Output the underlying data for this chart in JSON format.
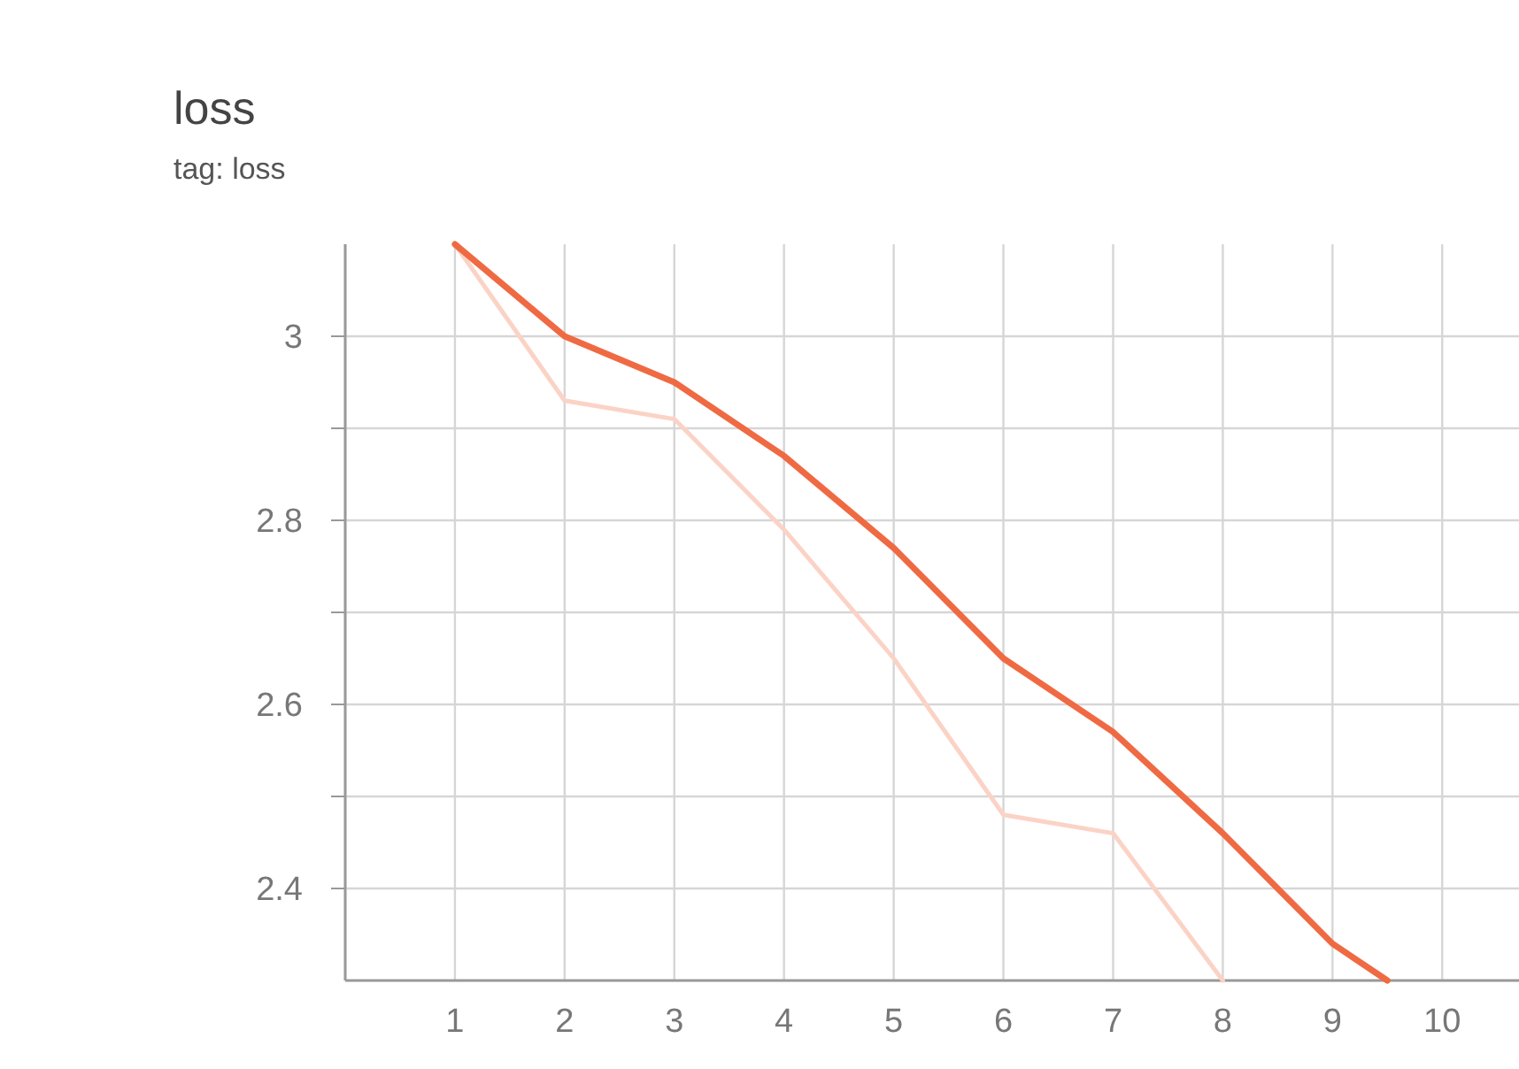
{
  "chart_data": {
    "type": "line",
    "title": "loss",
    "subtitle": "tag: loss",
    "xlim": [
      0,
      10.7
    ],
    "xticks": [
      {
        "value": 0,
        "label": null
      },
      1,
      2,
      3,
      4,
      5,
      6,
      7,
      8,
      9,
      10
    ],
    "ylim": [
      2.3,
      3.1
    ],
    "yticks": [
      {
        "value": 2.4,
        "label": "2.4"
      },
      {
        "value": 2.5,
        "label": null
      },
      {
        "value": 2.6,
        "label": "2.6"
      },
      {
        "value": 2.7,
        "label": null
      },
      {
        "value": 2.8,
        "label": "2.8"
      },
      {
        "value": 2.9,
        "label": null
      },
      {
        "value": 3,
        "label": "3"
      }
    ],
    "grid": true,
    "line_style": "solid",
    "marker": "none",
    "series": [
      {
        "color": "#fbd3c6",
        "x": [
          1,
          2,
          3,
          4,
          5,
          6,
          7,
          8
        ],
        "values": [
          3.1,
          2.93,
          2.91,
          2.79,
          2.65,
          2.48,
          2.46,
          2.3
        ]
      },
      {
        "color": "#ef6a43",
        "x": [
          1,
          2,
          3,
          4,
          5,
          6,
          7,
          8,
          9,
          9.5
        ],
        "values": [
          3.1,
          3.0,
          2.95,
          2.87,
          2.77,
          2.65,
          2.57,
          2.46,
          2.34,
          2.3
        ]
      }
    ]
  }
}
